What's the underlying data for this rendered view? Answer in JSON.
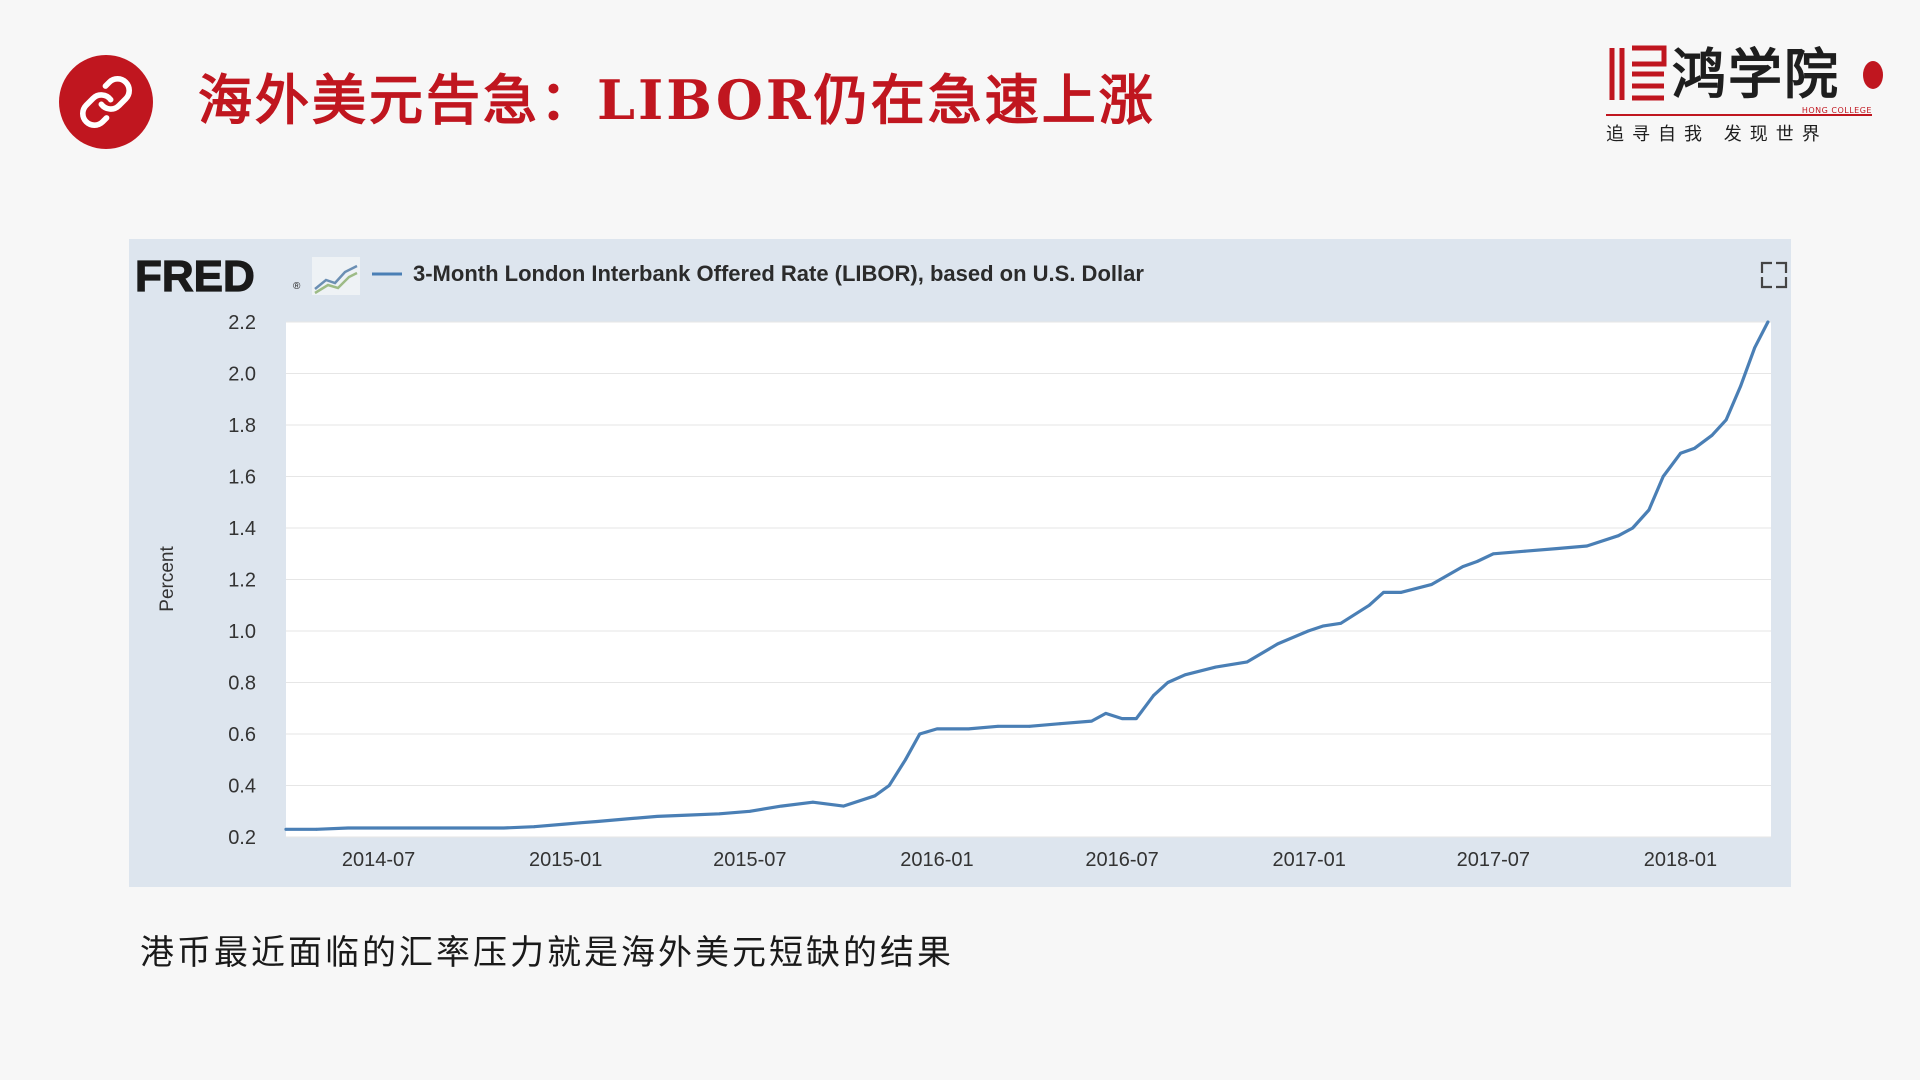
{
  "slide": {
    "title": "海外美元告急：LIBOR仍在急速上涨",
    "icon": "link-icon",
    "accent_color": "#c0161f",
    "caption": "港币最近面临的汇率压力就是海外美元短缺的结果"
  },
  "logo": {
    "name": "鸿学院",
    "english": "HONG COLLEGE",
    "motto": "追寻自我  发现世界"
  },
  "chart_header": {
    "brand": "FRED",
    "brand_mark": "®",
    "series_title": "3-Month London Interbank Offered Rate (LIBOR), based on U.S. Dollar",
    "expand_icon": "expand-icon"
  },
  "chart_data": {
    "type": "line",
    "title": "3-Month London Interbank Offered Rate (LIBOR), based on U.S. Dollar",
    "xlabel": "",
    "ylabel": "Percent",
    "ylim": [
      0.2,
      2.2
    ],
    "yticks": [
      0.2,
      0.4,
      0.6,
      0.8,
      1.0,
      1.2,
      1.4,
      1.6,
      1.8,
      2.0,
      2.2
    ],
    "ytick_labels": [
      "0.2",
      "0.4",
      "0.6",
      "0.8",
      "1.0",
      "1.2",
      "1.4",
      "1.6",
      "1.8",
      "2.0",
      "2.2"
    ],
    "xlim": [
      "2014-04-01",
      "2018-03-31"
    ],
    "xticks": [
      "2014-07",
      "2015-01",
      "2015-07",
      "2016-01",
      "2016-07",
      "2017-01",
      "2017-07",
      "2018-01"
    ],
    "grid": true,
    "line_color": "#4a7fb5",
    "series": [
      {
        "name": "3-Month London Interbank Offered Rate (LIBOR), based on U.S. Dollar",
        "x": [
          "2014-04-01",
          "2014-05-01",
          "2014-06-01",
          "2014-07-01",
          "2014-08-01",
          "2014-09-01",
          "2014-10-01",
          "2014-11-01",
          "2014-12-01",
          "2014-12-31",
          "2015-01-15",
          "2015-02-01",
          "2015-03-01",
          "2015-04-01",
          "2015-05-01",
          "2015-06-01",
          "2015-07-01",
          "2015-08-01",
          "2015-09-01",
          "2015-10-01",
          "2015-11-01",
          "2015-11-15",
          "2015-12-01",
          "2015-12-15",
          "2016-01-01",
          "2016-02-01",
          "2016-03-01",
          "2016-04-01",
          "2016-05-01",
          "2016-06-01",
          "2016-06-15",
          "2016-07-01",
          "2016-07-15",
          "2016-08-01",
          "2016-08-15",
          "2016-09-01",
          "2016-10-01",
          "2016-11-01",
          "2016-12-01",
          "2016-12-31",
          "2017-01-15",
          "2017-02-01",
          "2017-03-01",
          "2017-03-15",
          "2017-04-01",
          "2017-05-01",
          "2017-06-01",
          "2017-06-15",
          "2017-07-01",
          "2017-08-01",
          "2017-09-01",
          "2017-10-01",
          "2017-11-01",
          "2017-11-15",
          "2017-12-01",
          "2017-12-15",
          "2018-01-01",
          "2018-01-15",
          "2018-02-01",
          "2018-02-15",
          "2018-03-01",
          "2018-03-15",
          "2018-03-28"
        ],
        "values": [
          0.23,
          0.23,
          0.235,
          0.235,
          0.235,
          0.235,
          0.235,
          0.235,
          0.24,
          0.25,
          0.255,
          0.26,
          0.27,
          0.28,
          0.285,
          0.29,
          0.3,
          0.32,
          0.335,
          0.32,
          0.36,
          0.4,
          0.5,
          0.6,
          0.62,
          0.62,
          0.63,
          0.63,
          0.64,
          0.65,
          0.68,
          0.66,
          0.66,
          0.75,
          0.8,
          0.83,
          0.86,
          0.88,
          0.95,
          1.0,
          1.02,
          1.03,
          1.1,
          1.15,
          1.15,
          1.18,
          1.25,
          1.27,
          1.3,
          1.31,
          1.32,
          1.33,
          1.37,
          1.4,
          1.47,
          1.6,
          1.69,
          1.71,
          1.76,
          1.82,
          1.95,
          2.1,
          2.2
        ]
      }
    ]
  }
}
